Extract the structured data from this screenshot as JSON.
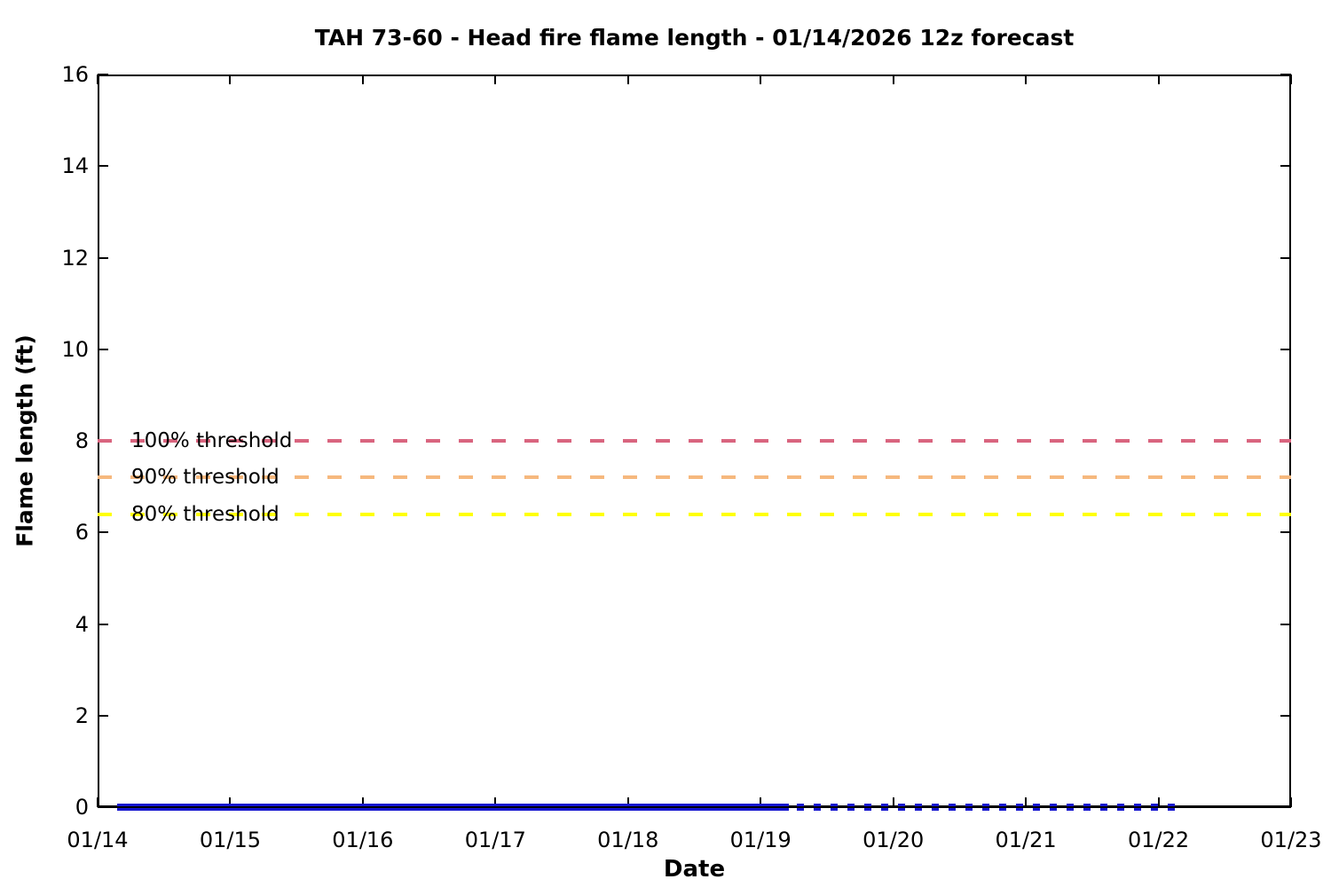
{
  "window": {
    "background": "#ffffff",
    "axis_color": "#000000"
  },
  "chart_data": {
    "type": "line",
    "title": "TAH 73-60 - Head fire flame length - 01/14/2026 12z forecast",
    "xlabel": "Date",
    "ylabel": "Flame length (ft)",
    "ylim": [
      0,
      16
    ],
    "y_ticks": [
      "0",
      "2",
      "4",
      "6",
      "8",
      "10",
      "12",
      "14",
      "16"
    ],
    "x_ticks": [
      "01/14",
      "01/15",
      "01/16",
      "01/17",
      "01/18",
      "01/19",
      "01/20",
      "01/21",
      "01/22",
      "01/23"
    ],
    "grid": false,
    "legend": "none",
    "thresholds": [
      {
        "label": "100% threshold",
        "value": 8,
        "color": "#d9657f",
        "style": "dashed"
      },
      {
        "label": "90% threshold",
        "value": 7.2,
        "color": "#f6b87e",
        "style": "dashed"
      },
      {
        "label": "80% threshold",
        "value": 6.4,
        "color": "#ffff00",
        "style": "dashed"
      }
    ],
    "series": [
      {
        "name": "head fire flame length",
        "color": "#1414cf",
        "y_value": 0,
        "x_unit": "days after 01/14",
        "segments": [
          {
            "style": "solid",
            "x_start": 0.15,
            "x_end": 5.21
          },
          {
            "style": "dotted",
            "x_start": 5.27,
            "x_end": 8.2
          }
        ]
      }
    ]
  }
}
